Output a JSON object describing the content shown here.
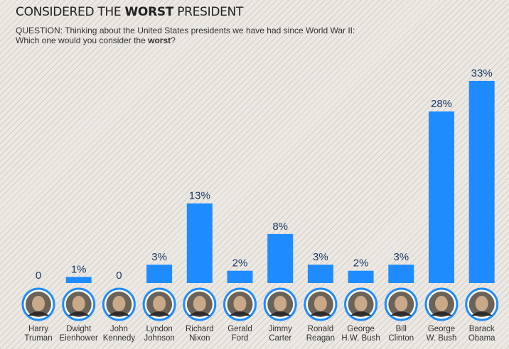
{
  "header": {
    "title_pre": "CONSIDERED THE ",
    "title_bold": "WORST",
    "title_post": " PRESIDENT",
    "question_line1": "QUESTION: Thinking about the United States presidents we have had since World War II:",
    "question_line2_pre": "Which one would you consider the ",
    "question_line2_bold": "worst",
    "question_line2_post": "?"
  },
  "colors": {
    "bar": "#1e8cff",
    "value_label": "#1a3a66",
    "name_label": "#333333",
    "portrait_ring": "#1e8cff"
  },
  "chart_data": {
    "type": "bar",
    "title": "CONSIDERED THE WORST PRESIDENT",
    "categories": [
      [
        "Harry",
        "Truman"
      ],
      [
        "Dwight",
        "Eienhower"
      ],
      [
        "John",
        "Kennedy"
      ],
      [
        "Lyndon",
        "Johnson"
      ],
      [
        "Richard",
        "Nixon"
      ],
      [
        "Gerald",
        "Ford"
      ],
      [
        "Jimmy",
        "Carter"
      ],
      [
        "Ronald",
        "Reagan"
      ],
      [
        "George",
        "H.W. Bush"
      ],
      [
        "Bill",
        "Clinton"
      ],
      [
        "George",
        "W. Bush"
      ],
      [
        "Barack",
        "Obama"
      ]
    ],
    "values": [
      0,
      1,
      0,
      3,
      13,
      2,
      8,
      3,
      2,
      3,
      28,
      33
    ],
    "value_labels": [
      "0",
      "1%",
      "0",
      "3%",
      "13%",
      "2%",
      "8%",
      "3%",
      "2%",
      "3%",
      "28%",
      "33%"
    ],
    "ylim": [
      0,
      33
    ],
    "grid": false,
    "legend": "none"
  }
}
